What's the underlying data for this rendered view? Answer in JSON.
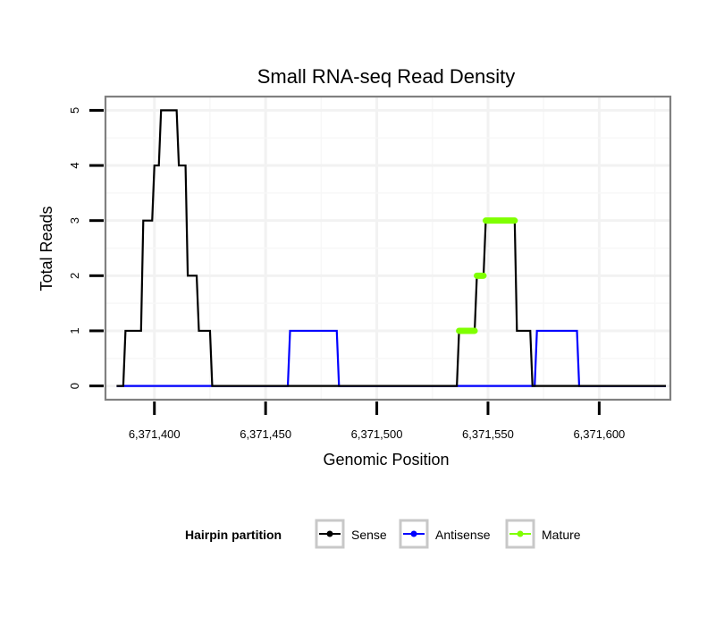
{
  "chart_data": {
    "type": "line",
    "title": "Small RNA-seq Read Density",
    "xlabel": "Genomic Position",
    "ylabel": "Total Reads",
    "xlim": [
      6371378,
      6371632
    ],
    "ylim": [
      -0.25,
      5.25
    ],
    "x_ticks": [
      6371400,
      6371450,
      6371500,
      6371550,
      6371600
    ],
    "x_tick_labels": [
      "6,371,400",
      "6,371,450",
      "6,371,500",
      "6,371,550",
      "6,371,600"
    ],
    "y_ticks": [
      0,
      1,
      2,
      3,
      4,
      5
    ],
    "y_tick_labels": [
      "0",
      "1",
      "2",
      "3",
      "4",
      "5"
    ],
    "grid": true,
    "legend": {
      "title": "Hairpin partition",
      "position": "bottom",
      "items": [
        {
          "label": "Sense",
          "color": "#000000"
        },
        {
          "label": "Antisense",
          "color": "#0000ff"
        },
        {
          "label": "Mature",
          "color": "#7fff00"
        }
      ]
    },
    "series": [
      {
        "name": "Sense",
        "color": "#000000",
        "type": "step",
        "x": [
          6371383,
          6371386,
          6371387,
          6371394,
          6371395,
          6371399,
          6371400,
          6371402,
          6371403,
          6371406,
          6371407,
          6371410,
          6371411,
          6371414,
          6371415,
          6371419,
          6371420,
          6371422,
          6371423,
          6371425,
          6371426,
          6371536,
          6371537,
          6371544,
          6371545,
          6371548,
          6371549,
          6371562,
          6371563,
          6371569,
          6371570,
          6371630
        ],
        "y": [
          0,
          0,
          1,
          1,
          3,
          3,
          4,
          4,
          5,
          5,
          5,
          5,
          4,
          4,
          2,
          2,
          1,
          1,
          1,
          1,
          0,
          0,
          1,
          1,
          2,
          2,
          3,
          3,
          1,
          1,
          0,
          0
        ]
      },
      {
        "name": "Antisense",
        "color": "#0000ff",
        "type": "step",
        "x": [
          6371383,
          6371460,
          6371461,
          6371482,
          6371483,
          6371571,
          6371572,
          6371590,
          6371591,
          6371630
        ],
        "y": [
          0,
          0,
          1,
          1,
          0,
          0,
          1,
          1,
          0,
          0
        ]
      },
      {
        "name": "Mature",
        "color": "#7fff00",
        "type": "segments",
        "segments": [
          {
            "x": [
              6371537,
              6371544
            ],
            "y": 1
          },
          {
            "x": [
              6371545,
              6371548
            ],
            "y": 2
          },
          {
            "x": [
              6371549,
              6371562
            ],
            "y": 3
          }
        ]
      }
    ]
  }
}
